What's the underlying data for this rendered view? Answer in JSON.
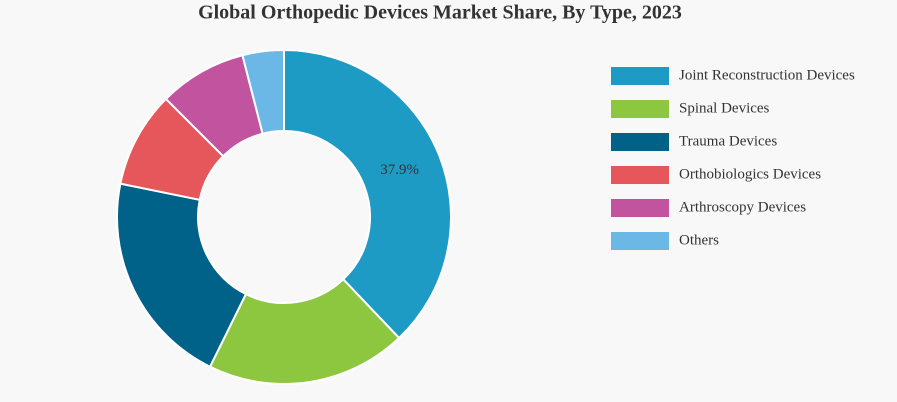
{
  "chart_data": {
    "type": "donut",
    "title": "Global Orthopedic Devices Market Share, By Type, 2023",
    "categories": [
      "Joint Reconstruction Devices",
      "Spinal Devices",
      "Trauma Devices",
      "Orthobiologics Devices",
      "Arthroscopy Devices",
      "Others"
    ],
    "values": [
      37.9,
      19.4,
      20.9,
      9.3,
      8.5,
      4.0
    ],
    "value_labels": [
      "37.9%",
      null,
      null,
      null,
      null,
      null
    ],
    "colors": [
      "#1e9bc4",
      "#8dc63f",
      "#006289",
      "#e5575a",
      "#c2549f",
      "#6bb8e6"
    ],
    "legend": "right"
  }
}
